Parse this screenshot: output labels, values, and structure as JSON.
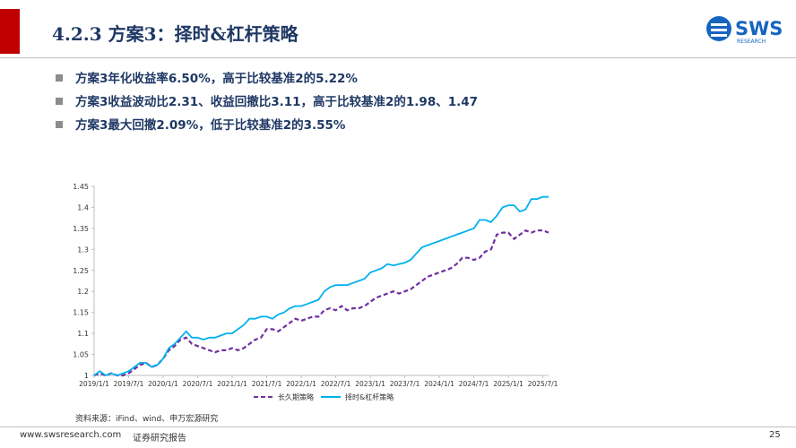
{
  "header": {
    "title": "4.2.3 方案3：择时&杠杆策略",
    "logo": "SWS",
    "logo_sub": "RESEARCH"
  },
  "bullets": [
    "方案3年化收益率6.50%，高于比较基准2的5.22%",
    "方案3收益波动比2.31、收益回撤比3.11，高于比较基准2的1.98、1.47",
    "方案3最大回撤2.09%，低于比较基准2的3.55%"
  ],
  "chart_data": {
    "type": "line",
    "x": [
      "2019/1/1",
      "2019/2/1",
      "2019/3/1",
      "2019/4/1",
      "2019/5/1",
      "2019/6/1",
      "2019/7/1",
      "2019/8/1",
      "2019/9/1",
      "2019/10/1",
      "2019/11/1",
      "2019/12/1",
      "2020/1/1",
      "2020/2/1",
      "2020/3/1",
      "2020/4/1",
      "2020/5/1",
      "2020/6/1",
      "2020/7/1",
      "2020/8/1",
      "2020/9/1",
      "2020/10/1",
      "2020/11/1",
      "2020/12/1",
      "2021/1/1",
      "2021/2/1",
      "2021/3/1",
      "2021/4/1",
      "2021/5/1",
      "2021/6/1",
      "2021/7/1",
      "2021/8/1",
      "2021/9/1",
      "2021/10/1",
      "2021/11/1",
      "2021/12/1",
      "2022/1/1",
      "2022/2/1",
      "2022/3/1",
      "2022/4/1",
      "2022/5/1",
      "2022/6/1",
      "2022/7/1",
      "2022/8/1",
      "2022/9/1",
      "2022/10/1",
      "2022/11/1",
      "2022/12/1",
      "2023/1/1",
      "2023/2/1",
      "2023/3/1",
      "2023/4/1",
      "2023/5/1",
      "2023/6/1",
      "2023/7/1",
      "2023/8/1",
      "2023/9/1",
      "2023/10/1",
      "2023/11/1",
      "2023/12/1",
      "2024/1/1",
      "2024/2/1",
      "2024/3/1",
      "2024/4/1",
      "2024/5/1",
      "2024/6/1",
      "2024/7/1",
      "2024/8/1",
      "2024/9/1",
      "2024/10/1",
      "2024/11/1",
      "2024/12/1",
      "2025/1/1",
      "2025/2/1",
      "2025/3/1",
      "2025/4/1",
      "2025/5/1",
      "2025/6/1",
      "2025/7/1",
      "2025/8/1"
    ],
    "series": [
      {
        "name": "长久期策略",
        "color": "#7030a0",
        "style": "dashed",
        "values": [
          1.0,
          1.005,
          1.0,
          1.005,
          1.0,
          1.0,
          1.005,
          1.015,
          1.025,
          1.03,
          1.02,
          1.025,
          1.04,
          1.06,
          1.07,
          1.085,
          1.09,
          1.075,
          1.07,
          1.065,
          1.06,
          1.055,
          1.06,
          1.06,
          1.065,
          1.06,
          1.065,
          1.075,
          1.085,
          1.09,
          1.11,
          1.11,
          1.105,
          1.115,
          1.125,
          1.135,
          1.13,
          1.135,
          1.14,
          1.14,
          1.155,
          1.16,
          1.155,
          1.165,
          1.155,
          1.16,
          1.16,
          1.165,
          1.175,
          1.185,
          1.19,
          1.195,
          1.2,
          1.195,
          1.2,
          1.205,
          1.215,
          1.225,
          1.235,
          1.24,
          1.245,
          1.25,
          1.255,
          1.265,
          1.28,
          1.28,
          1.275,
          1.28,
          1.295,
          1.3,
          1.335,
          1.34,
          1.34,
          1.325,
          1.335,
          1.345,
          1.34,
          1.345,
          1.345,
          1.34
        ]
      },
      {
        "name": "择时&杠杆策略",
        "color": "#00b0f0",
        "style": "solid",
        "values": [
          1.0,
          1.01,
          1.0,
          1.005,
          1.0,
          1.005,
          1.01,
          1.02,
          1.03,
          1.03,
          1.02,
          1.025,
          1.04,
          1.065,
          1.075,
          1.09,
          1.105,
          1.09,
          1.09,
          1.085,
          1.09,
          1.09,
          1.095,
          1.1,
          1.1,
          1.11,
          1.12,
          1.135,
          1.135,
          1.14,
          1.14,
          1.135,
          1.145,
          1.15,
          1.16,
          1.165,
          1.165,
          1.17,
          1.175,
          1.18,
          1.2,
          1.21,
          1.215,
          1.215,
          1.215,
          1.22,
          1.225,
          1.23,
          1.245,
          1.25,
          1.255,
          1.265,
          1.262,
          1.265,
          1.268,
          1.275,
          1.29,
          1.305,
          1.31,
          1.315,
          1.32,
          1.325,
          1.33,
          1.335,
          1.34,
          1.345,
          1.35,
          1.37,
          1.37,
          1.365,
          1.38,
          1.4,
          1.405,
          1.405,
          1.39,
          1.395,
          1.42,
          1.42,
          1.425,
          1.425
        ]
      }
    ],
    "xlim": [
      "2019/1/1",
      "2025/8/1"
    ],
    "xticks": [
      "2019/1/1",
      "2019/7/1",
      "2020/1/1",
      "2020/7/1",
      "2021/1/1",
      "2021/7/1",
      "2022/1/1",
      "2022/7/1",
      "2023/1/1",
      "2023/7/1",
      "2024/1/1",
      "2024/7/1",
      "2025/1/1",
      "2025/7/1"
    ],
    "ylim": [
      1,
      1.45
    ],
    "yticks": [
      1,
      1.05,
      1.1,
      1.15,
      1.2,
      1.25,
      1.3,
      1.35,
      1.4,
      1.45
    ],
    "legend": "bottom",
    "source": "资料来源：iFind、wind、申万宏源研究"
  },
  "footer": {
    "site": "www.swsresearch.com",
    "label": "证券研究报告",
    "page": "25"
  }
}
